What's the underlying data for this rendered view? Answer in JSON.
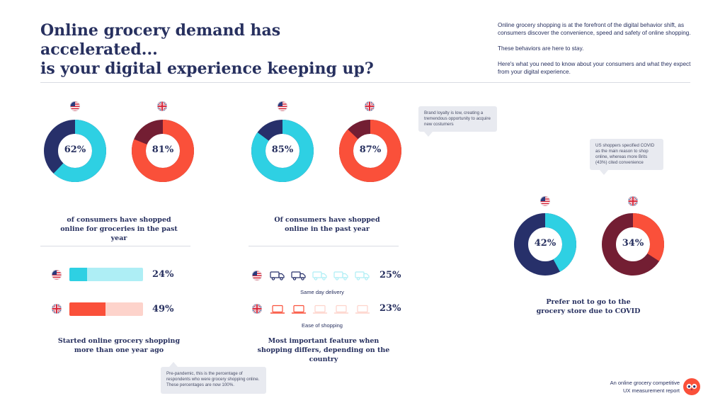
{
  "header": {
    "title_line1": "Online grocery demand has accelerated...",
    "title_line2": "is your digital experience keeping up?",
    "intro_p1": "Online grocery shopping is at the forefront of the digital behavior shift, as consumers discover the convenience, speed and safety of online shopping.",
    "intro_p2": "These behaviors are here to stay.",
    "intro_p3": "Here's what you need to know about your consumers and what they expect from your digital experience."
  },
  "colors": {
    "navy": "#27306a",
    "cyan": "#2ed0e3",
    "cyan_light": "#aeeef5",
    "maroon": "#731e33",
    "coral": "#fa503a",
    "coral_light": "#fdd3cb"
  },
  "icons": {
    "us_flag": "us-flag-icon",
    "uk_flag": "uk-flag-icon",
    "truck": "delivery-truck-icon",
    "laptop": "laptop-icon",
    "owl": "owl-logo-icon"
  },
  "chart_data": [
    {
      "type": "pie",
      "id": "shopped_groceries",
      "title": "of consumers have shopped online for groceries in the past year",
      "series": [
        {
          "name": "US",
          "value": 62,
          "label": "62%",
          "color": "#2ed0e3",
          "rest_color": "#27306a"
        },
        {
          "name": "UK",
          "value": 81,
          "label": "81%",
          "color": "#fa503a",
          "rest_color": "#731e33"
        }
      ]
    },
    {
      "type": "pie",
      "id": "shopped_online",
      "title": "Of consumers have shopped online in the past year",
      "series": [
        {
          "name": "US",
          "value": 85,
          "label": "85%",
          "color": "#2ed0e3",
          "rest_color": "#27306a"
        },
        {
          "name": "UK",
          "value": 87,
          "label": "87%",
          "color": "#fa503a",
          "rest_color": "#731e33"
        }
      ]
    },
    {
      "type": "pie",
      "id": "prefer_not_store",
      "title": "Prefer not to go to the grocery store due to COVID",
      "series": [
        {
          "name": "US",
          "value": 42,
          "label": "42%",
          "color": "#2ed0e3",
          "rest_color": "#27306a"
        },
        {
          "name": "UK",
          "value": 34,
          "label": "34%",
          "color": "#fa503a",
          "rest_color": "#731e33"
        }
      ]
    },
    {
      "type": "bar",
      "id": "started_more_than_year",
      "title": "Started online grocery shopping more than one year ago",
      "series": [
        {
          "name": "US",
          "value": 24,
          "label": "24%",
          "color": "#2ed0e3",
          "bg": "#aeeef5"
        },
        {
          "name": "UK",
          "value": 49,
          "label": "49%",
          "color": "#fa503a",
          "bg": "#fdd3cb"
        }
      ],
      "ylim": [
        0,
        100
      ]
    },
    {
      "type": "bar",
      "id": "important_feature",
      "title": "Most important feature when shopping differs, depending on the country",
      "series": [
        {
          "name": "US",
          "value": 25,
          "label": "25%",
          "feature": "Same day delivery",
          "icon": "delivery-truck-icon",
          "filled_icons": 2,
          "total_icons": 5
        },
        {
          "name": "UK",
          "value": 23,
          "label": "23%",
          "feature": "Ease of shopping",
          "icon": "laptop-icon",
          "filled_icons": 2,
          "total_icons": 5
        }
      ]
    }
  ],
  "notes": {
    "brand_loyalty": "Brand loyalty is low, creating a tremendous opportunity to acquire new costumers",
    "covid_reason": "US shoppers specified COVID as the main reason to shop online, whereas more Brits (43%) cited convenience",
    "pre_pandemic": "Pre-pandemic, this is the percentage of respondents who were grocery shopping online. These percentages are now 100%."
  },
  "footer": {
    "line1": "An online grocery competitive",
    "line2": "UX measurement report"
  }
}
